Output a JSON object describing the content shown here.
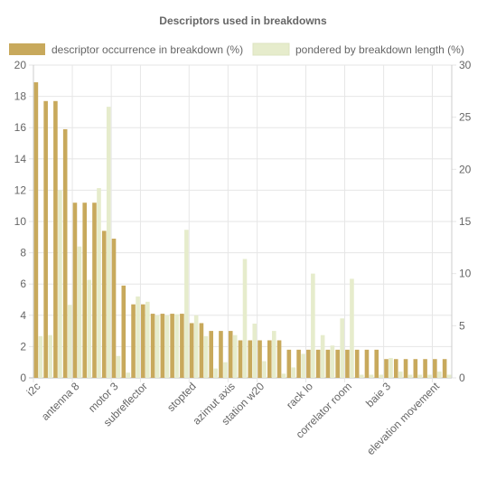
{
  "chart_data": {
    "type": "bar",
    "title": "Descriptors used in breakdowns",
    "legend_position": "top",
    "grid": true,
    "categories": [
      "i2c",
      "",
      "",
      "",
      "antenna 8",
      "",
      "",
      "",
      "motor 3",
      "",
      "",
      "subreflector",
      "",
      "",
      "",
      "",
      "stopted",
      "",
      "",
      "",
      "azimut axis",
      "",
      "",
      "station w20",
      "",
      "",
      "",
      "",
      "rack lo",
      "",
      "",
      "",
      "correlator room",
      "",
      "",
      "",
      "baie 3",
      "",
      "",
      "",
      "",
      "elevation movement",
      ""
    ],
    "series": [
      {
        "name": "descriptor occurrence in breakdown (%)",
        "axis": "left",
        "color": "#c8a95c",
        "values": [
          18.9,
          17.7,
          17.7,
          15.9,
          11.2,
          11.2,
          11.2,
          9.4,
          8.9,
          5.9,
          4.7,
          4.7,
          4.1,
          4.1,
          4.1,
          4.1,
          3.5,
          3.5,
          3.0,
          3.0,
          3.0,
          2.4,
          2.4,
          2.4,
          2.4,
          2.4,
          1.8,
          1.8,
          1.8,
          1.8,
          1.8,
          1.8,
          1.8,
          1.8,
          1.8,
          1.8,
          1.2,
          1.2,
          1.2,
          1.2,
          1.2,
          1.2,
          1.2
        ]
      },
      {
        "name": "pondered by breakdown length (%)",
        "axis": "right",
        "color": "#e6eccc",
        "values": [
          4.0,
          4.1,
          18.0,
          7.0,
          12.6,
          9.4,
          18.2,
          26.0,
          2.1,
          0.5,
          7.8,
          7.3,
          6.0,
          6.0,
          6.1,
          14.2,
          6.0,
          4.0,
          0.9,
          1.5,
          4.1,
          11.4,
          5.2,
          1.6,
          4.5,
          0.4,
          1.0,
          2.3,
          10.0,
          4.1,
          3.1,
          5.7,
          9.5,
          0.3,
          0.3,
          0.3,
          1.9,
          0.6,
          0.3,
          0.3,
          0.3,
          0.6,
          0.3
        ]
      }
    ],
    "ylim_left": [
      0,
      20
    ],
    "yticks_left": [
      "0",
      "2",
      "4",
      "6",
      "8",
      "10",
      "12",
      "14",
      "16",
      "18",
      "20"
    ],
    "ylim_right": [
      0,
      30
    ],
    "yticks_right": [
      "0",
      "5",
      "10",
      "15",
      "20",
      "25",
      "30"
    ]
  }
}
